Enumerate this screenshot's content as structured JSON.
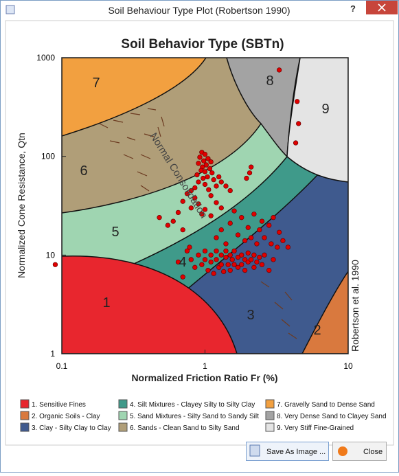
{
  "window": {
    "title": "Soil Behaviour Type Plot (Robertson 1990)",
    "help": "?",
    "buttons": [
      "Save As Image ...",
      "Close"
    ]
  },
  "chart_data": {
    "type": "scatter",
    "title": "Soil Behavior Type (SBTn)",
    "x_label": "Normalized Friction Ratio Fr (%)",
    "y_label": "Normalized Cone Resistance, Qtn",
    "annotations": [
      "Normal Consolidation",
      "Robertson et al. 1990"
    ],
    "xlim": [
      0.1,
      10
    ],
    "ylim": [
      1,
      1000
    ],
    "xticks": [
      0.1,
      1,
      10
    ],
    "yticks": [
      1,
      10,
      100,
      1000
    ],
    "log_x": true,
    "log_y": true,
    "color": "#e00000",
    "zones": [
      {
        "label": "1",
        "name": "1. Sensitive Fines",
        "color": "#e8262e"
      },
      {
        "label": "2",
        "name": "2. Organic Soils - Clay",
        "color": "#d9793e"
      },
      {
        "label": "3",
        "name": "3. Clay - Silty Clay to Clay",
        "color": "#3f5a8e"
      },
      {
        "label": "4",
        "name": "4. Silt Mixtures - Clayey Silty to Silty Clay",
        "color": "#3f9a8a"
      },
      {
        "label": "5",
        "name": "5. Sand Mixtures - Silty Sand to Sandy Silt",
        "color": "#9fd5b1"
      },
      {
        "label": "6",
        "name": "6. Sands - Clean Sand to Silty Sand",
        "color": "#b09e78"
      },
      {
        "label": "7",
        "name": "7. Gravelly Sand to Dense Sand",
        "color": "#f2a040"
      },
      {
        "label": "8",
        "name": "8. Very Dense Sand to Clayey Sand",
        "color": "#a3a3a3"
      },
      {
        "label": "9",
        "name": "9. Very Stiff Fine-Grained",
        "color": "#e4e4e4"
      }
    ],
    "x": [
      0.95,
      1.0,
      0.92,
      1.05,
      0.98,
      1.1,
      0.9,
      1.02,
      0.96,
      1.08,
      0.94,
      1.0,
      1.12,
      0.88,
      1.04,
      0.97,
      1.15,
      0.9,
      1.0,
      1.2,
      0.85,
      1.06,
      1.3,
      1.4,
      1.25,
      0.8,
      0.75,
      0.85,
      1.1,
      1.5,
      0.7,
      0.9,
      1.2,
      0.8,
      1.0,
      1.3,
      0.65,
      0.95,
      1.6,
      1.1,
      1.8,
      2.2,
      2.5,
      2.8,
      3.0,
      1.5,
      2.0,
      2.4,
      3.3,
      1.3,
      1.7,
      2.1,
      2.6,
      3.5,
      1.2,
      1.9,
      2.3,
      2.9,
      3.2,
      3.8,
      1.4,
      0.6,
      0.55,
      0.48,
      0.7,
      0.75,
      0.8,
      0.85,
      0.9,
      0.95,
      1.0,
      1.0,
      1.05,
      1.1,
      1.1,
      1.15,
      1.2,
      1.2,
      1.25,
      1.3,
      1.3,
      1.35,
      1.4,
      1.4,
      1.45,
      1.5,
      1.5,
      1.55,
      1.6,
      1.6,
      1.7,
      1.7,
      1.8,
      1.8,
      1.9,
      1.9,
      2.0,
      2.0,
      2.1,
      2.2,
      2.2,
      2.3,
      2.4,
      2.5,
      2.6,
      0.7,
      0.78,
      0.65,
      2.8,
      3.0,
      0.09,
      3.3,
      4.4,
      4.5,
      4.3,
      2.1,
      2.05,
      1.95
    ],
    "values": [
      110,
      105,
      98,
      95,
      90,
      88,
      85,
      82,
      78,
      75,
      72,
      70,
      68,
      65,
      62,
      60,
      58,
      55,
      52,
      50,
      48,
      46,
      55,
      50,
      62,
      45,
      42,
      38,
      40,
      45,
      35,
      33,
      34,
      30,
      29,
      30,
      27,
      26,
      28,
      25,
      24,
      26,
      22,
      20,
      24,
      21,
      19,
      18,
      17,
      18,
      16,
      15,
      15,
      14,
      15,
      14,
      13,
      13,
      12,
      12,
      13,
      22,
      20,
      24,
      18,
      11,
      9,
      7.5,
      10,
      8,
      11,
      9,
      7,
      10,
      8.5,
      6.5,
      11,
      9,
      7.5,
      10,
      8,
      6.8,
      11,
      9.5,
      8,
      7,
      10,
      9,
      8,
      11,
      9.5,
      7.5,
      10,
      8,
      9,
      7,
      10.5,
      8.5,
      9,
      7.5,
      10,
      8.5,
      9.5,
      8,
      10,
      6,
      12,
      8.5,
      7,
      9,
      8,
      750,
      360,
      215,
      137,
      78,
      68,
      60
    ]
  }
}
